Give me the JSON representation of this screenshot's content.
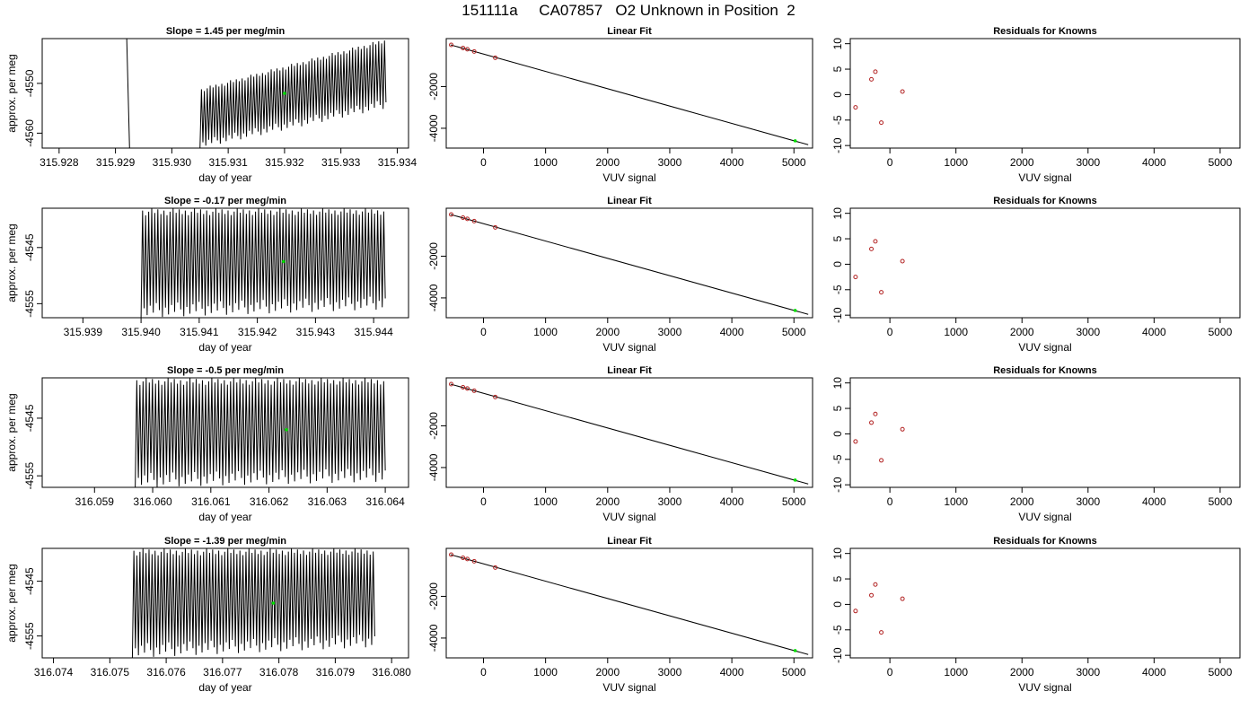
{
  "page_title": "151111a     CA07857   O2 Unknown in Position  2",
  "colors": {
    "axis": "#000000",
    "known_point": "#b22222",
    "unknown_point": "#00dd00",
    "trace": "#000000"
  },
  "chart_data": [
    {
      "type": "line",
      "row": 0,
      "col": 0,
      "title": "Slope =  1.45  per meg/min",
      "xlabel": "day of year",
      "ylabel": "approx. per meg",
      "xlim": [
        315.9277,
        315.9342
      ],
      "ylim": [
        -4563,
        -4541
      ],
      "xticks": [
        315.928,
        315.929,
        315.93,
        315.931,
        315.932,
        315.933,
        315.934
      ],
      "xtick_labels": [
        "315.928",
        "315.929",
        "315.930",
        "315.931",
        "315.932",
        "315.933",
        "315.934"
      ],
      "yticks": [
        -4560,
        -4550
      ],
      "ytick_labels": [
        "-4560",
        "-4550"
      ],
      "trace": {
        "x_start": 315.9305,
        "x_end": 315.9338,
        "low_start": -4563,
        "low_end": -4555,
        "high_start": -4551,
        "high_end": -4541,
        "cycles": 64,
        "offscale_line_x": 315.9292
      },
      "unknown_marker": {
        "x": 315.932,
        "y": -4552
      }
    },
    {
      "type": "scatter",
      "row": 0,
      "col": 1,
      "title": "Linear Fit",
      "xlabel": "VUV signal",
      "ylabel": "",
      "xlim": [
        -600,
        5300
      ],
      "ylim": [
        -4950,
        300
      ],
      "xticks": [
        0,
        1000,
        2000,
        3000,
        4000,
        5000
      ],
      "xtick_labels": [
        "0",
        "1000",
        "2000",
        "3000",
        "4000",
        "5000"
      ],
      "yticks": [
        -4000,
        -2000
      ],
      "ytick_labels": [
        "-4000",
        "-2000"
      ],
      "fit_line": {
        "x": [
          -530,
          5230
        ],
        "y": [
          0,
          -4790
        ]
      },
      "knowns": {
        "x": [
          -520,
          -330,
          -260,
          -150,
          190
        ],
        "y": [
          0,
          -152,
          -210,
          -320,
          -620
        ]
      },
      "unknown": {
        "x": 5020,
        "y": -4600
      }
    },
    {
      "type": "scatter",
      "row": 0,
      "col": 2,
      "title": "Residuals for Knowns",
      "xlabel": "VUV signal",
      "ylabel": "",
      "xlim": [
        -600,
        5300
      ],
      "ylim": [
        -10.5,
        11
      ],
      "xticks": [
        0,
        1000,
        2000,
        3000,
        4000,
        5000
      ],
      "xtick_labels": [
        "0",
        "1000",
        "2000",
        "3000",
        "4000",
        "5000"
      ],
      "yticks": [
        -10,
        -5,
        0,
        5,
        10
      ],
      "ytick_labels": [
        "-10",
        "-5",
        "0",
        "5",
        "10"
      ],
      "knowns": {
        "x": [
          -520,
          -280,
          -220,
          -130,
          190
        ],
        "y": [
          -2.5,
          3.0,
          4.5,
          -5.5,
          0.6
        ]
      }
    },
    {
      "type": "line",
      "row": 1,
      "col": 0,
      "title": "Slope =  -0.17  per meg/min",
      "xlabel": "day of year",
      "ylabel": "approx. per meg",
      "xlim": [
        315.9383,
        315.9446
      ],
      "ylim": [
        -4557.5,
        -4538
      ],
      "xticks": [
        315.939,
        315.94,
        315.941,
        315.942,
        315.943,
        315.944
      ],
      "xtick_labels": [
        "315.939",
        "315.940",
        "315.941",
        "315.942",
        "315.943",
        "315.944"
      ],
      "yticks": [
        -4555,
        -4545
      ],
      "ytick_labels": [
        "-4555",
        "-4545"
      ],
      "trace": {
        "x_start": 315.94,
        "x_end": 315.9442,
        "low_start": -4557.5,
        "low_end": -4556,
        "high_start": -4538,
        "high_end": -4538,
        "cycles": 80
      },
      "unknown_marker": {
        "x": 315.94245,
        "y": -4547.5
      }
    },
    {
      "type": "scatter",
      "row": 1,
      "col": 1,
      "title": "Linear Fit",
      "xlabel": "VUV signal",
      "ylabel": "",
      "xlim": [
        -600,
        5300
      ],
      "ylim": [
        -4950,
        300
      ],
      "xticks": [
        0,
        1000,
        2000,
        3000,
        4000,
        5000
      ],
      "xtick_labels": [
        "0",
        "1000",
        "2000",
        "3000",
        "4000",
        "5000"
      ],
      "yticks": [
        -4000,
        -2000
      ],
      "ytick_labels": [
        "-4000",
        "-2000"
      ],
      "fit_line": {
        "x": [
          -530,
          5230
        ],
        "y": [
          0,
          -4790
        ]
      },
      "knowns": {
        "x": [
          -520,
          -330,
          -260,
          -150,
          190
        ],
        "y": [
          0,
          -152,
          -210,
          -320,
          -620
        ]
      },
      "unknown": {
        "x": 5020,
        "y": -4600
      }
    },
    {
      "type": "scatter",
      "row": 1,
      "col": 2,
      "title": "Residuals for Knowns",
      "xlabel": "VUV signal",
      "ylabel": "",
      "xlim": [
        -600,
        5300
      ],
      "ylim": [
        -10.5,
        11
      ],
      "xticks": [
        0,
        1000,
        2000,
        3000,
        4000,
        5000
      ],
      "xtick_labels": [
        "0",
        "1000",
        "2000",
        "3000",
        "4000",
        "5000"
      ],
      "yticks": [
        -10,
        -5,
        0,
        5,
        10
      ],
      "ytick_labels": [
        "-10",
        "-5",
        "0",
        "5",
        "10"
      ],
      "knowns": {
        "x": [
          -520,
          -280,
          -220,
          -130,
          190
        ],
        "y": [
          -2.5,
          3.0,
          4.5,
          -5.5,
          0.6
        ]
      }
    },
    {
      "type": "line",
      "row": 2,
      "col": 0,
      "title": "Slope =  -0.5  per meg/min",
      "xlabel": "day of year",
      "ylabel": "approx. per meg",
      "xlim": [
        316.0581,
        316.0644
      ],
      "ylim": [
        -4557,
        -4538
      ],
      "xticks": [
        316.059,
        316.06,
        316.061,
        316.062,
        316.063,
        316.064
      ],
      "xtick_labels": [
        "316.059",
        "316.060",
        "316.061",
        "316.062",
        "316.063",
        "316.064"
      ],
      "yticks": [
        -4555,
        -4545
      ],
      "ytick_labels": [
        "-4555",
        "-4545"
      ],
      "trace": {
        "x_start": 316.0597,
        "x_end": 316.064,
        "low_start": -4557,
        "low_end": -4556,
        "high_start": -4538,
        "high_end": -4538,
        "cycles": 80
      },
      "unknown_marker": {
        "x": 316.0623,
        "y": -4547
      }
    },
    {
      "type": "scatter",
      "row": 2,
      "col": 1,
      "title": "Linear Fit",
      "xlabel": "VUV signal",
      "ylabel": "",
      "xlim": [
        -600,
        5300
      ],
      "ylim": [
        -4950,
        300
      ],
      "xticks": [
        0,
        1000,
        2000,
        3000,
        4000,
        5000
      ],
      "xtick_labels": [
        "0",
        "1000",
        "2000",
        "3000",
        "4000",
        "5000"
      ],
      "yticks": [
        -4000,
        -2000
      ],
      "ytick_labels": [
        "-4000",
        "-2000"
      ],
      "fit_line": {
        "x": [
          -530,
          5230
        ],
        "y": [
          0,
          -4790
        ]
      },
      "knowns": {
        "x": [
          -520,
          -330,
          -260,
          -150,
          190
        ],
        "y": [
          0,
          -152,
          -210,
          -320,
          -620
        ]
      },
      "unknown": {
        "x": 5020,
        "y": -4600
      }
    },
    {
      "type": "scatter",
      "row": 2,
      "col": 2,
      "title": "Residuals for Knowns",
      "xlabel": "VUV signal",
      "ylabel": "",
      "xlim": [
        -600,
        5300
      ],
      "ylim": [
        -10.5,
        11
      ],
      "xticks": [
        0,
        1000,
        2000,
        3000,
        4000,
        5000
      ],
      "xtick_labels": [
        "0",
        "1000",
        "2000",
        "3000",
        "4000",
        "5000"
      ],
      "yticks": [
        -10,
        -5,
        0,
        5,
        10
      ],
      "ytick_labels": [
        "-10",
        "-5",
        "0",
        "5",
        "10"
      ],
      "knowns": {
        "x": [
          -520,
          -280,
          -220,
          -130,
          190
        ],
        "y": [
          -1.5,
          2.2,
          3.9,
          -5.2,
          0.9
        ]
      }
    },
    {
      "type": "line",
      "row": 3,
      "col": 0,
      "title": "Slope =  -1.39  per meg/min",
      "xlabel": "day of year",
      "ylabel": "approx. per meg",
      "xlim": [
        316.0738,
        316.0803
      ],
      "ylim": [
        -4559,
        -4539
      ],
      "xticks": [
        316.074,
        316.075,
        316.076,
        316.077,
        316.078,
        316.079,
        316.08
      ],
      "xtick_labels": [
        "316.074",
        "316.075",
        "316.076",
        "316.077",
        "316.078",
        "316.079",
        "316.080"
      ],
      "yticks": [
        -4555,
        -4545
      ],
      "ytick_labels": [
        "-4555",
        "-4545"
      ],
      "trace": {
        "x_start": 316.0754,
        "x_end": 316.0797,
        "low_start": -4559,
        "low_end": -4557,
        "high_start": -4539,
        "high_end": -4539,
        "cycles": 80
      },
      "unknown_marker": {
        "x": 316.0779,
        "y": -4549
      }
    },
    {
      "type": "scatter",
      "row": 3,
      "col": 1,
      "title": "Linear Fit",
      "xlabel": "VUV signal",
      "ylabel": "",
      "xlim": [
        -600,
        5300
      ],
      "ylim": [
        -4950,
        300
      ],
      "xticks": [
        0,
        1000,
        2000,
        3000,
        4000,
        5000
      ],
      "xtick_labels": [
        "0",
        "1000",
        "2000",
        "3000",
        "4000",
        "5000"
      ],
      "yticks": [
        -4000,
        -2000
      ],
      "ytick_labels": [
        "-4000",
        "-2000"
      ],
      "fit_line": {
        "x": [
          -530,
          5230
        ],
        "y": [
          0,
          -4790
        ]
      },
      "knowns": {
        "x": [
          -520,
          -330,
          -260,
          -150,
          190
        ],
        "y": [
          0,
          -152,
          -210,
          -320,
          -620
        ]
      },
      "unknown": {
        "x": 5020,
        "y": -4600
      }
    },
    {
      "type": "scatter",
      "row": 3,
      "col": 2,
      "title": "Residuals for Knowns",
      "xlabel": "VUV signal",
      "ylabel": "",
      "xlim": [
        -600,
        5300
      ],
      "ylim": [
        -10.5,
        11
      ],
      "xticks": [
        0,
        1000,
        2000,
        3000,
        4000,
        5000
      ],
      "xtick_labels": [
        "0",
        "1000",
        "2000",
        "3000",
        "4000",
        "5000"
      ],
      "yticks": [
        -10,
        -5,
        0,
        5,
        10
      ],
      "ytick_labels": [
        "-10",
        "-5",
        "0",
        "5",
        "10"
      ],
      "knowns": {
        "x": [
          -520,
          -280,
          -220,
          -130,
          190
        ],
        "y": [
          -1.3,
          1.8,
          3.9,
          -5.5,
          1.1
        ]
      }
    }
  ]
}
